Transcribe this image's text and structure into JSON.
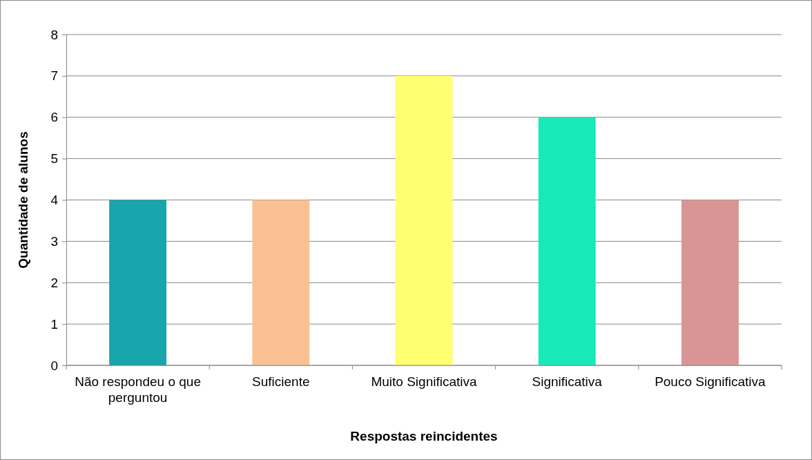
{
  "chart_data": {
    "type": "bar",
    "xlabel": "Respostas reincidentes",
    "ylabel": "Quantidade de alunos",
    "categories": [
      "Não respondeu o que perguntou",
      "Suficiente",
      "Muito Significativa",
      "Significativa",
      "Pouco Significativa"
    ],
    "values": [
      4,
      4,
      7,
      6,
      4
    ],
    "colors": [
      "#17a6ab",
      "#f9c192",
      "#ffff70",
      "#17eab8",
      "#d99594"
    ],
    "ylim": [
      0,
      8
    ],
    "yticks": [
      0,
      1,
      2,
      3,
      4,
      5,
      6,
      7,
      8
    ],
    "grid": "y"
  }
}
